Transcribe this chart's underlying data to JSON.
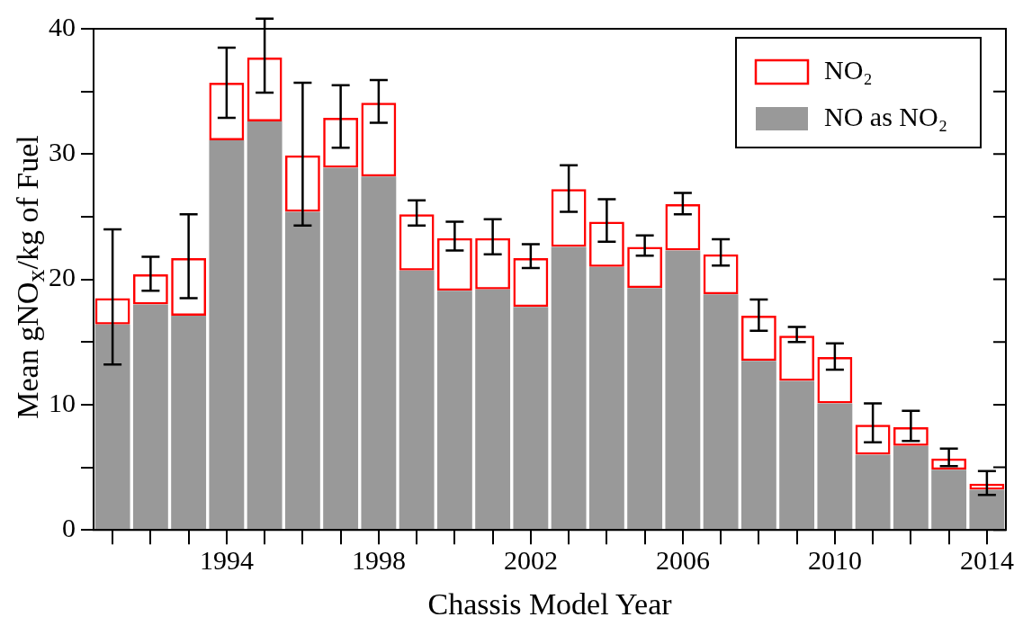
{
  "chart_data": {
    "type": "bar",
    "stacked": true,
    "xlabel": "Chassis Model Year",
    "ylabel": "Mean gNO$_{x}$/kg of Fuel",
    "categories": [
      null,
      null,
      null,
      "1994",
      null,
      null,
      null,
      "1998",
      null,
      null,
      null,
      "2002",
      null,
      null,
      null,
      "2006",
      null,
      null,
      null,
      "2010",
      null,
      null,
      null,
      "2014"
    ],
    "series": [
      {
        "name": "NO as NO₂",
        "color": "#999999",
        "values": [
          16.4,
          18.0,
          17.1,
          31.1,
          32.6,
          25.4,
          28.9,
          28.2,
          20.7,
          19.1,
          19.2,
          17.8,
          22.6,
          21.0,
          19.3,
          22.3,
          18.8,
          13.5,
          11.9,
          10.1,
          6.0,
          6.7,
          4.8,
          3.2
        ]
      },
      {
        "name": "NO₂",
        "color": "#ff0000",
        "values": [
          2.1,
          2.4,
          4.6,
          4.6,
          5.1,
          4.5,
          4.0,
          5.9,
          4.5,
          4.2,
          4.1,
          3.9,
          4.6,
          3.6,
          3.3,
          3.7,
          3.2,
          3.6,
          3.6,
          3.7,
          2.4,
          1.5,
          0.9,
          0.5
        ],
        "errors": [
          [
            13.2,
            24.0
          ],
          [
            19.1,
            21.8
          ],
          [
            18.5,
            25.2
          ],
          [
            32.9,
            38.5
          ],
          [
            34.9,
            40.8
          ],
          [
            24.3,
            35.7
          ],
          [
            30.5,
            35.5
          ],
          [
            32.5,
            35.9
          ],
          [
            24.3,
            26.3
          ],
          [
            22.3,
            24.6
          ],
          [
            22.0,
            24.8
          ],
          [
            20.9,
            22.8
          ],
          [
            25.4,
            29.1
          ],
          [
            23.0,
            26.4
          ],
          [
            21.9,
            23.5
          ],
          [
            25.2,
            26.9
          ],
          [
            21.1,
            23.2
          ],
          [
            15.9,
            18.4
          ],
          [
            15.0,
            16.2
          ],
          [
            12.8,
            14.9
          ],
          [
            7.0,
            10.1
          ],
          [
            7.1,
            9.5
          ],
          [
            5.1,
            6.5
          ],
          [
            2.8,
            4.7
          ]
        ]
      }
    ],
    "ylim": [
      0,
      40
    ],
    "yticks": [
      0,
      {
        "value": 5,
        "label": null
      },
      10,
      {
        "value": 15,
        "label": null
      },
      20,
      {
        "value": 25,
        "label": null
      },
      30,
      {
        "value": 35,
        "label": null
      },
      40
    ],
    "grid": false,
    "legend": "top right"
  }
}
